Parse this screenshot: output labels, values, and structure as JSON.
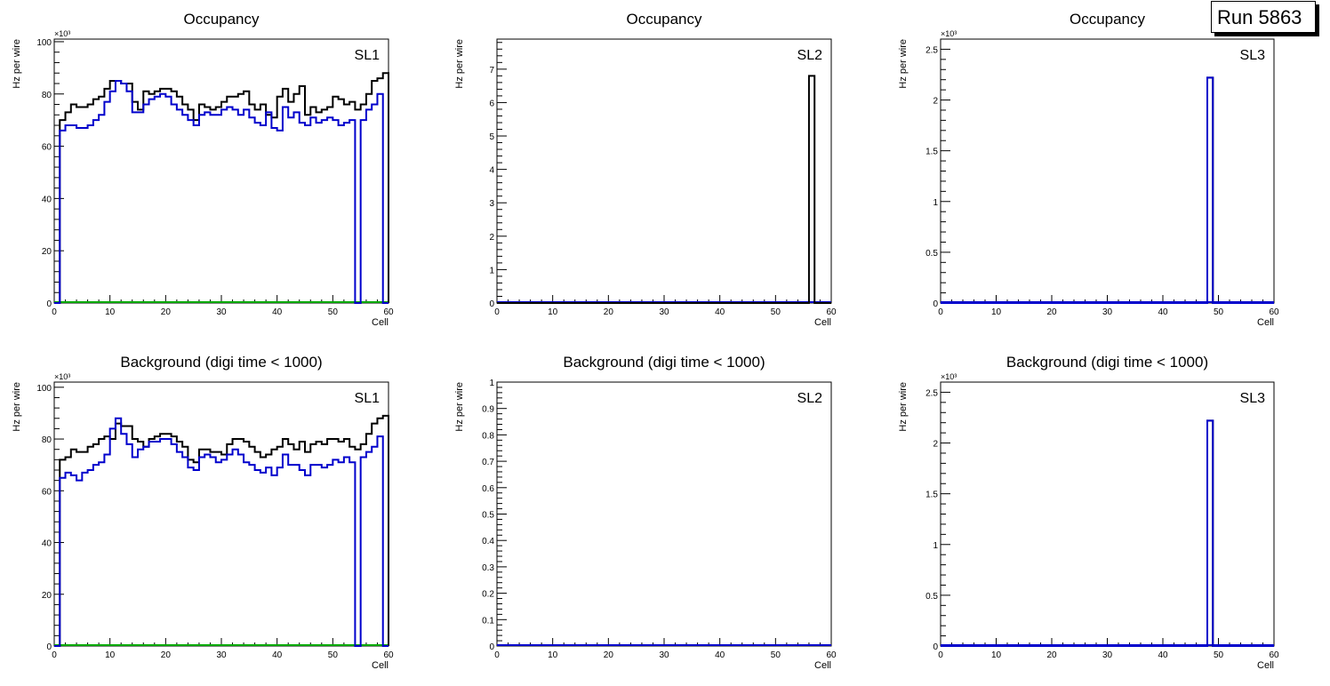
{
  "run_label": "Run 5863",
  "colors": {
    "total": "#000000",
    "tdc": "#0000cc",
    "green": "#00aa00",
    "frame": "#000000"
  },
  "chart_data": [
    {
      "type": "step-histogram",
      "title": "Occupancy",
      "label": "SL1",
      "xlabel": "Cell",
      "ylabel": "Hz per wire",
      "exponent": "×10³",
      "xlim": [
        0,
        60
      ],
      "ylim": [
        0,
        101
      ],
      "yticks": [
        0,
        20,
        40,
        60,
        80,
        100
      ],
      "xticks": [
        0,
        10,
        20,
        30,
        40,
        50,
        60
      ],
      "series": [
        {
          "name": "total",
          "color": "#000000",
          "values": [
            0,
            70,
            73,
            76,
            75,
            75,
            76,
            78,
            79,
            82,
            85,
            85,
            84,
            84,
            77,
            74,
            81,
            80,
            81,
            82,
            82,
            81,
            79,
            76,
            74,
            70,
            76,
            75,
            74,
            75,
            77,
            79,
            79,
            80,
            81,
            76,
            74,
            76,
            72,
            71,
            79,
            82,
            77,
            80,
            83,
            72,
            75,
            73,
            74,
            75,
            79,
            78,
            76,
            77,
            74,
            76,
            80,
            85,
            86,
            88
          ]
        },
        {
          "name": "tdc",
          "color": "#0000cc",
          "values": [
            0,
            66,
            68,
            68,
            67,
            67,
            68,
            70,
            72,
            77,
            81,
            85,
            84,
            81,
            73,
            73,
            76,
            78,
            79,
            80,
            79,
            76,
            74,
            72,
            70,
            68,
            72,
            73,
            72,
            72,
            74,
            75,
            74,
            72,
            74,
            71,
            69,
            68,
            73,
            67,
            66,
            75,
            71,
            73,
            69,
            68,
            71,
            69,
            70,
            71,
            70,
            68,
            69,
            70,
            0,
            70,
            74,
            76,
            80,
            0
          ]
        }
      ]
    },
    {
      "type": "step-histogram",
      "title": "Occupancy",
      "label": "SL2",
      "xlabel": "Cell",
      "ylabel": "Hz per wire",
      "exponent": "",
      "xlim": [
        0,
        60
      ],
      "ylim": [
        0,
        7.9
      ],
      "yticks": [
        0,
        1,
        2,
        3,
        4,
        5,
        6,
        7
      ],
      "xticks": [
        0,
        10,
        20,
        30,
        40,
        50,
        60
      ],
      "series": [
        {
          "name": "total",
          "color": "#000000",
          "bins": [
            [
              56,
              6.8
            ]
          ]
        }
      ]
    },
    {
      "type": "step-histogram",
      "title": "Occupancy",
      "label": "SL3",
      "xlabel": "Cell",
      "ylabel": "Hz per wire",
      "exponent": "×10³",
      "xlim": [
        0,
        60
      ],
      "ylim": [
        0,
        2.6
      ],
      "yticks": [
        0,
        0.5,
        1,
        1.5,
        2,
        2.5
      ],
      "xticks": [
        0,
        10,
        20,
        30,
        40,
        50,
        60
      ],
      "series": [
        {
          "name": "total",
          "color": "#000000",
          "bins": [
            [
              48,
              2.22
            ]
          ]
        },
        {
          "name": "tdc",
          "color": "#0000cc",
          "bins": [
            [
              48,
              2.22
            ]
          ]
        }
      ]
    },
    {
      "type": "step-histogram",
      "title": "Background (digi time < 1000)",
      "label": "SL1",
      "xlabel": "Cell",
      "ylabel": "Hz per wire",
      "exponent": "×10³",
      "xlim": [
        0,
        60
      ],
      "ylim": [
        0,
        102
      ],
      "yticks": [
        0,
        20,
        40,
        60,
        80,
        100
      ],
      "xticks": [
        0,
        10,
        20,
        30,
        40,
        50,
        60
      ],
      "series": [
        {
          "name": "total",
          "color": "#000000",
          "values": [
            0,
            72,
            73,
            76,
            75,
            75,
            77,
            78,
            80,
            81,
            80,
            86,
            85,
            85,
            80,
            79,
            77,
            80,
            81,
            82,
            82,
            81,
            79,
            77,
            72,
            71,
            76,
            76,
            75,
            75,
            74,
            78,
            80,
            80,
            79,
            77,
            75,
            73,
            74,
            76,
            77,
            80,
            78,
            76,
            79,
            75,
            78,
            79,
            78,
            80,
            80,
            79,
            80,
            77,
            76,
            78,
            82,
            86,
            88,
            89
          ]
        },
        {
          "name": "tdc",
          "color": "#0000cc",
          "values": [
            0,
            65,
            67,
            66,
            64,
            67,
            68,
            70,
            71,
            74,
            84,
            88,
            82,
            78,
            73,
            76,
            77,
            79,
            79,
            80,
            80,
            78,
            75,
            73,
            69,
            68,
            73,
            74,
            73,
            71,
            72,
            74,
            76,
            74,
            71,
            70,
            68,
            67,
            69,
            66,
            69,
            74,
            70,
            70,
            68,
            66,
            70,
            70,
            69,
            70,
            72,
            71,
            73,
            71,
            0,
            73,
            75,
            77,
            81,
            0
          ]
        }
      ]
    },
    {
      "type": "step-histogram",
      "title": "Background (digi time < 1000)",
      "label": "SL2",
      "xlabel": "Cell",
      "ylabel": "Hz per wire",
      "exponent": "",
      "xlim": [
        0,
        60
      ],
      "ylim": [
        0,
        1.0
      ],
      "yticks": [
        0,
        0.1,
        0.2,
        0.3,
        0.4,
        0.5,
        0.6,
        0.7,
        0.8,
        0.9,
        1
      ],
      "xticks": [
        0,
        10,
        20,
        30,
        40,
        50,
        60
      ],
      "series": []
    },
    {
      "type": "step-histogram",
      "title": "Background (digi time < 1000)",
      "label": "SL3",
      "xlabel": "Cell",
      "ylabel": "Hz per wire",
      "exponent": "×10³",
      "xlim": [
        0,
        60
      ],
      "ylim": [
        0,
        2.6
      ],
      "yticks": [
        0,
        0.5,
        1,
        1.5,
        2,
        2.5
      ],
      "xticks": [
        0,
        10,
        20,
        30,
        40,
        50,
        60
      ],
      "series": [
        {
          "name": "total",
          "color": "#000000",
          "bins": [
            [
              48,
              2.22
            ]
          ]
        },
        {
          "name": "tdc",
          "color": "#0000cc",
          "bins": [
            [
              48,
              2.22
            ]
          ]
        }
      ]
    }
  ]
}
